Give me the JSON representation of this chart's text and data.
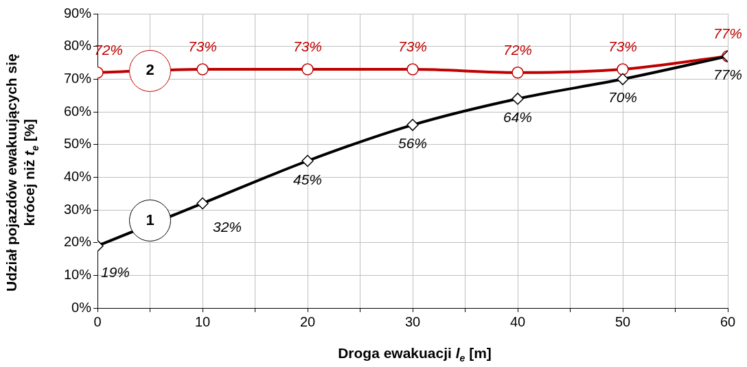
{
  "chart_data": {
    "type": "line",
    "xlabel": "Droga ewakuacji l$_{e}$ [m]",
    "ylabel": "Udział pojazdów ewakuujących się\nkrócej niż t$_{e}$ [%]",
    "x": [
      0,
      10,
      20,
      30,
      40,
      50,
      60
    ],
    "xlim": [
      0,
      60
    ],
    "xticks": [
      0,
      {
        "value": 5,
        "label": null
      },
      10,
      {
        "value": 15,
        "label": null
      },
      20,
      {
        "value": 25,
        "label": null
      },
      30,
      {
        "value": 35,
        "label": null
      },
      40,
      {
        "value": 45,
        "label": null
      },
      50,
      {
        "value": 55,
        "label": null
      },
      60
    ],
    "ylim": [
      0,
      90
    ],
    "yticks": [
      {
        "value": 0,
        "label": "0%"
      },
      {
        "value": 10,
        "label": "10%"
      },
      {
        "value": 20,
        "label": "20%"
      },
      {
        "value": 30,
        "label": "30%"
      },
      {
        "value": 40,
        "label": "40%"
      },
      {
        "value": 50,
        "label": "50%"
      },
      {
        "value": 60,
        "label": "60%"
      },
      {
        "value": 70,
        "label": "70%"
      },
      {
        "value": 80,
        "label": "80%"
      },
      {
        "value": 90,
        "label": "90%"
      }
    ],
    "grid": true,
    "legend": false,
    "series": [
      {
        "name": "1",
        "color": "#000000",
        "marker": "diamond",
        "values": [
          19,
          32,
          45,
          56,
          64,
          70,
          77
        ],
        "value_labels": [
          "19%",
          "32%",
          "45%",
          "56%",
          "64%",
          "70%",
          "77%"
        ]
      },
      {
        "name": "2",
        "color": "#c00000",
        "marker": "circle",
        "values": [
          72,
          73,
          73,
          73,
          72,
          73,
          77
        ],
        "value_labels": [
          "72%",
          "73%",
          "73%",
          "73%",
          "72%",
          "73%",
          "77%"
        ]
      }
    ]
  }
}
